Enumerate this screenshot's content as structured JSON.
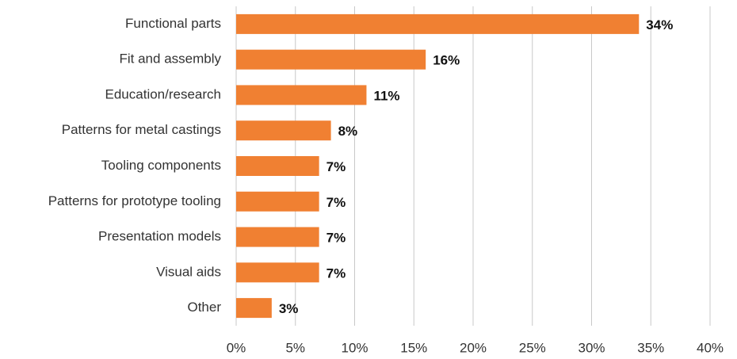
{
  "chart_data": {
    "type": "bar",
    "orientation": "horizontal",
    "categories": [
      "Functional parts",
      "Fit and assembly",
      "Education/research",
      "Patterns for metal castings",
      "Tooling components",
      "Patterns for prototype tooling",
      "Presentation models",
      "Visual aids",
      "Other"
    ],
    "values": [
      34,
      16,
      11,
      8,
      7,
      7,
      7,
      7,
      3
    ],
    "value_labels": [
      "34%",
      "16%",
      "11%",
      "8%",
      "7%",
      "7%",
      "7%",
      "7%",
      "3%"
    ],
    "color": "#f08032",
    "xlim": [
      0,
      40
    ],
    "xticks": [
      {
        "value": 0,
        "label": "0%"
      },
      {
        "value": 5,
        "label": "5%"
      },
      {
        "value": 10,
        "label": "10%"
      },
      {
        "value": 15,
        "label": "15%"
      },
      {
        "value": 20,
        "label": "20%"
      },
      {
        "value": 25,
        "label": "25%"
      },
      {
        "value": 30,
        "label": "30%"
      },
      {
        "value": 35,
        "label": "35%"
      },
      {
        "value": 40,
        "label": "40%"
      }
    ],
    "grid": true
  }
}
